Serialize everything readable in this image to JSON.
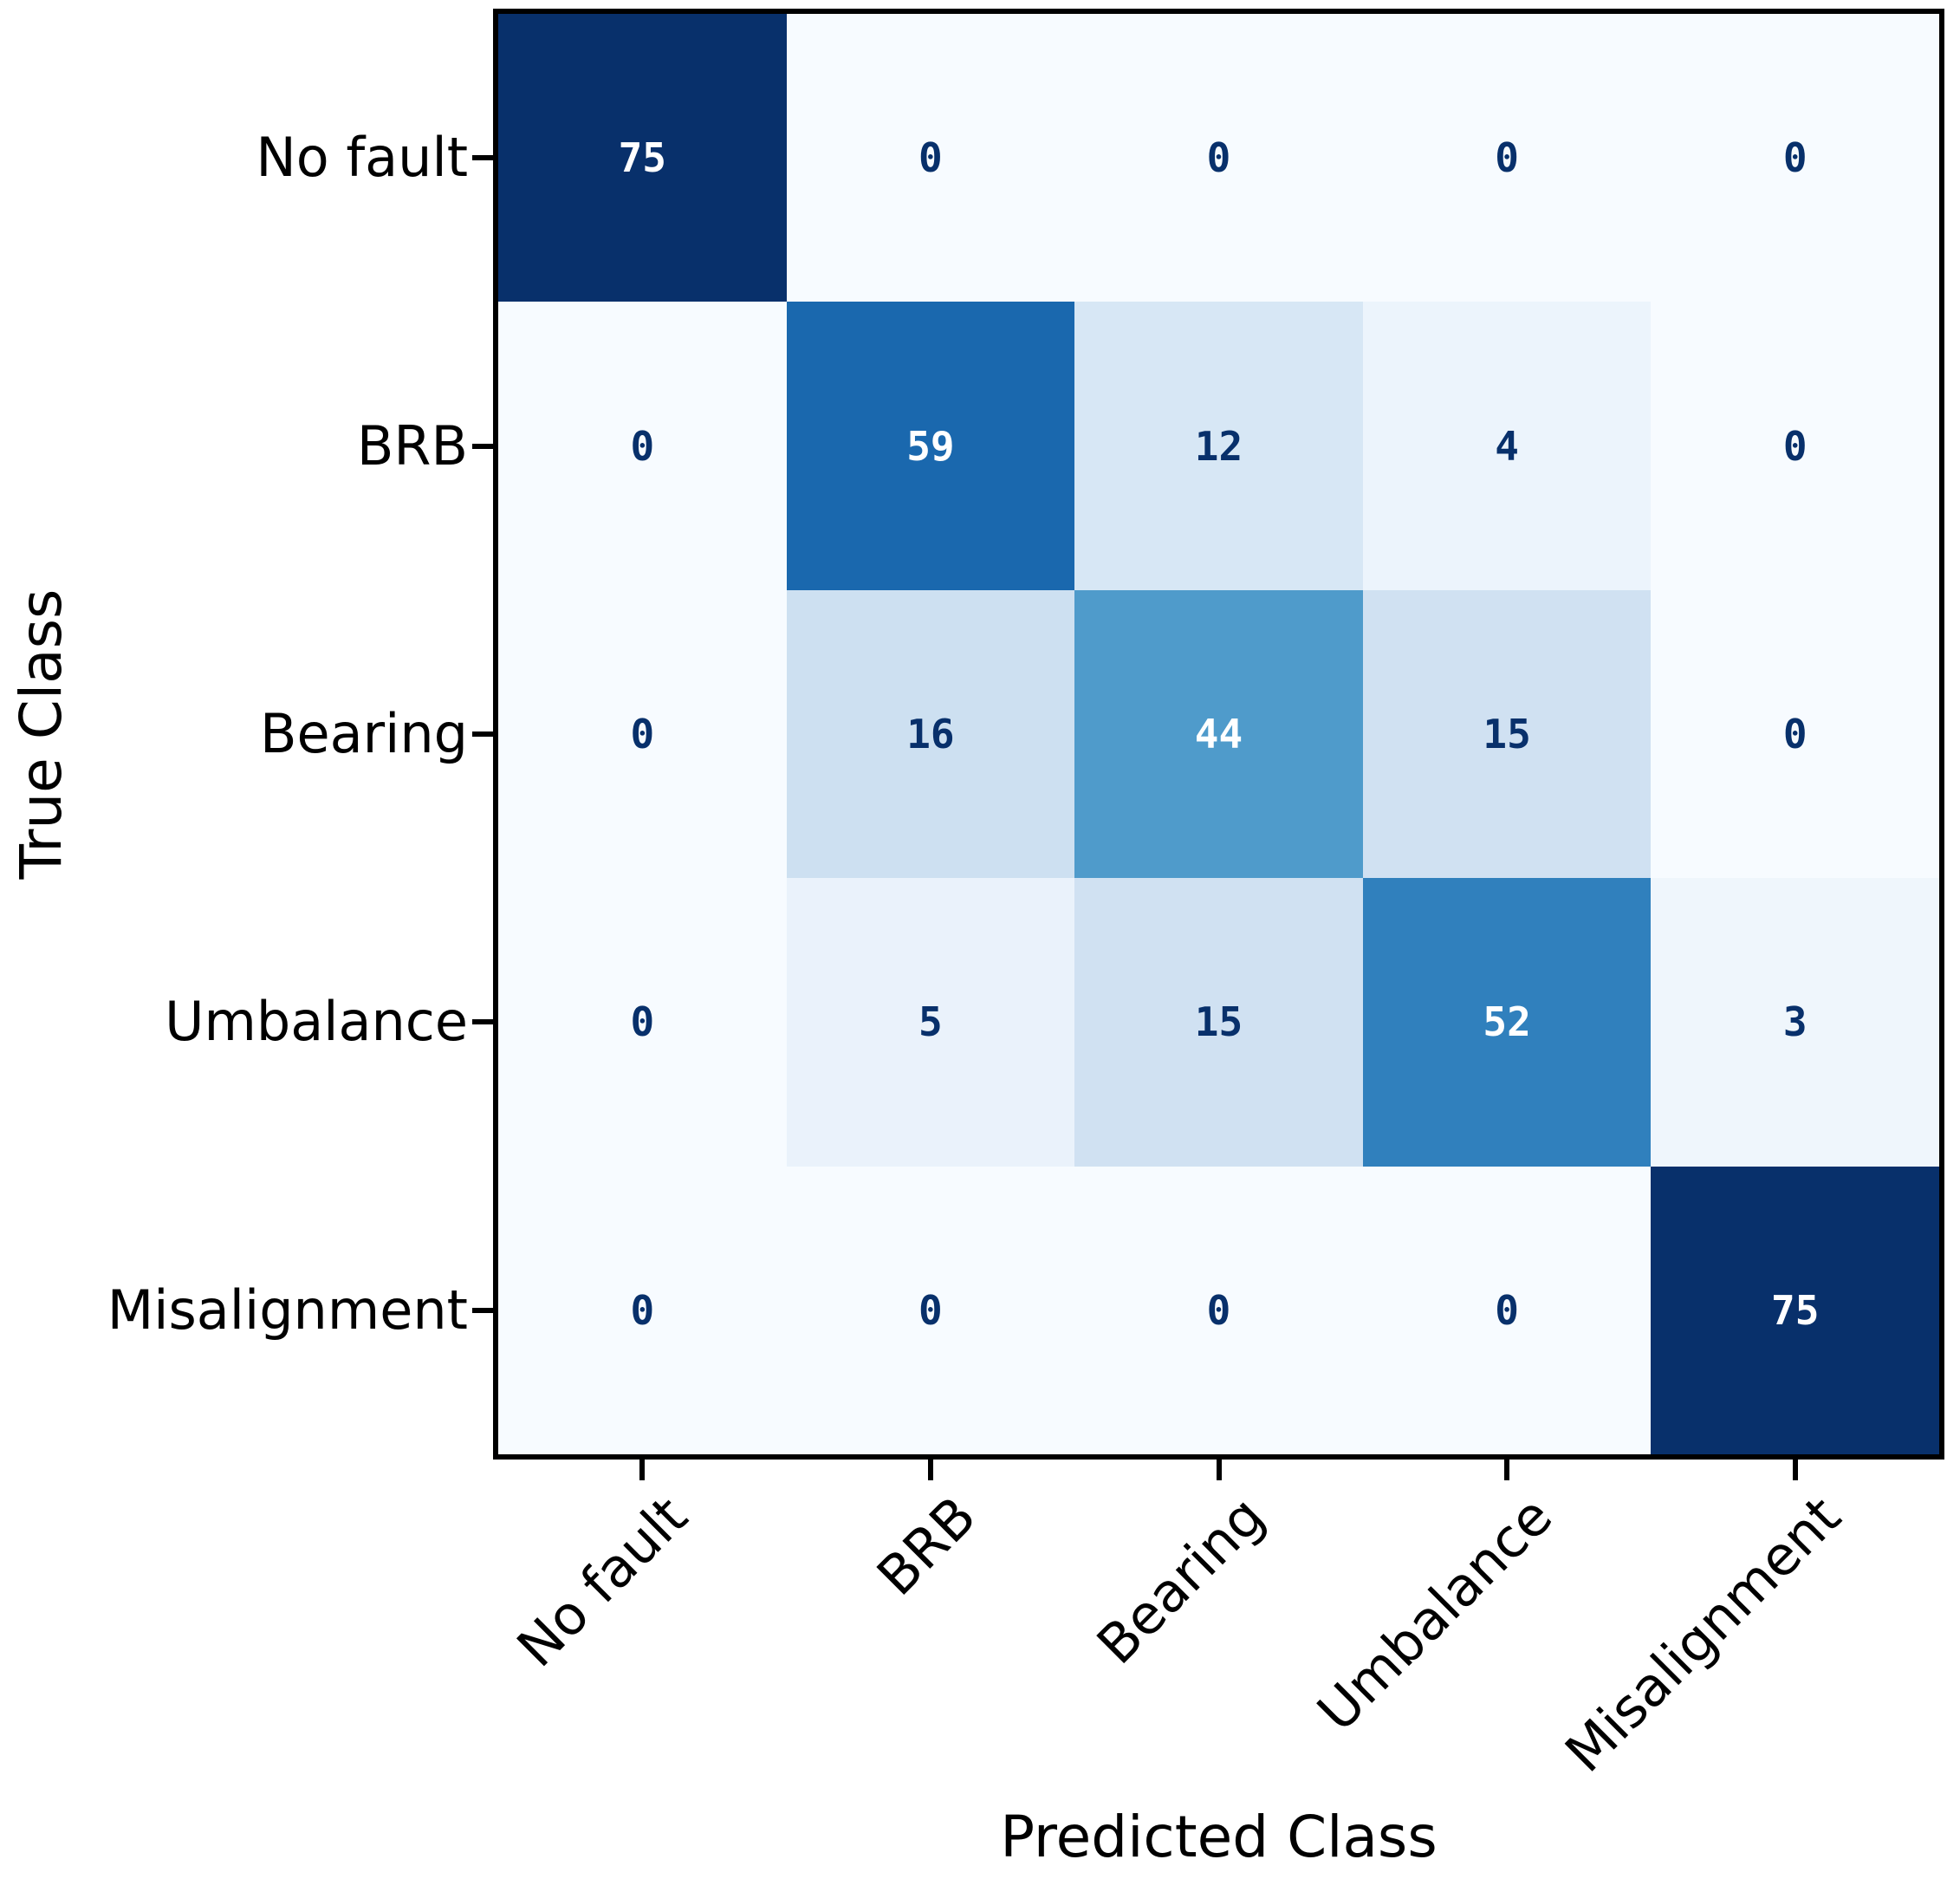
{
  "chart_data": {
    "type": "heatmap",
    "subtype": "confusion-matrix",
    "title": "",
    "xlabel": "Predicted Class",
    "ylabel": "True Class",
    "categories": [
      "No fault",
      "BRB",
      "Bearing",
      "Umbalance",
      "Misalignment"
    ],
    "matrix": [
      [
        75,
        0,
        0,
        0,
        0
      ],
      [
        0,
        59,
        12,
        4,
        0
      ],
      [
        0,
        16,
        44,
        15,
        0
      ],
      [
        0,
        5,
        15,
        52,
        3
      ],
      [
        0,
        0,
        0,
        0,
        75
      ]
    ],
    "vmin": 0,
    "vmax": 75,
    "grid": false,
    "legend_position": "none",
    "colormap_name": "Blues",
    "colormap_stops": [
      "#f7fbff",
      "#deebf7",
      "#c6dbef",
      "#9ecae1",
      "#6baed6",
      "#4292c6",
      "#2171b5",
      "#08519c",
      "#08306b"
    ],
    "cell_text_dark": "#08306b",
    "cell_text_light": "#ffffff",
    "axis_color": "#000000"
  }
}
